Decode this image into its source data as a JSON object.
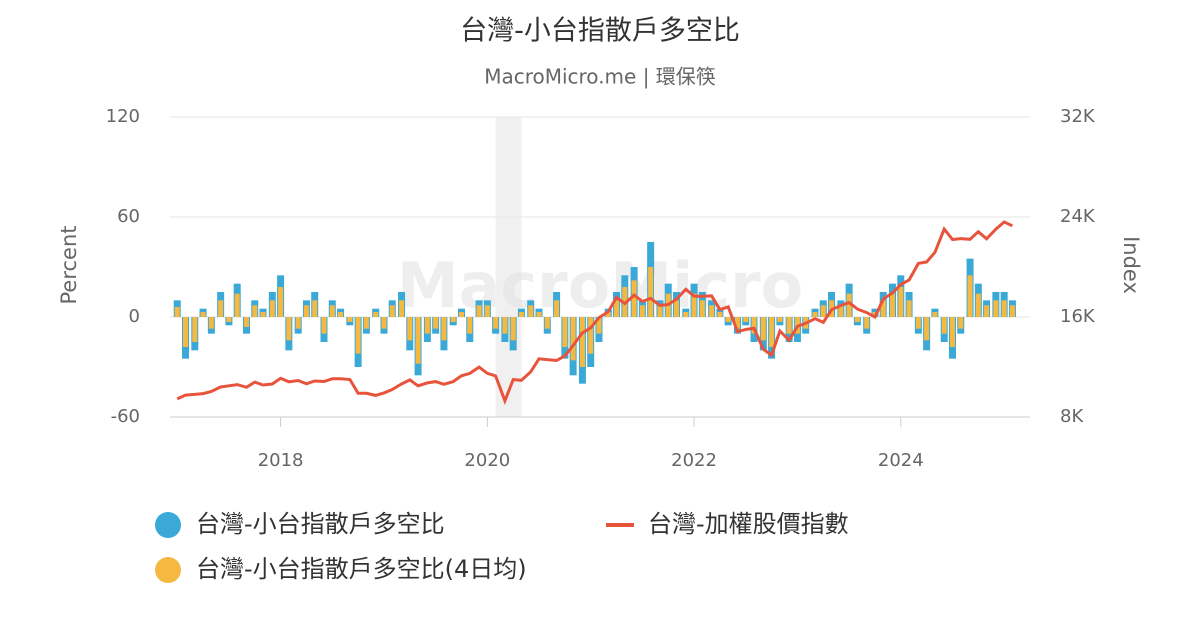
{
  "chart_data": {
    "type": "bar-line",
    "title": "台灣-小台指散戶多空比",
    "subtitle": "MacroMicro.me | 環保筷",
    "watermark": "MacroMicro",
    "y_label": "Percent",
    "y2_label": "Index",
    "x": [
      2017.0,
      2017.08,
      2017.17,
      2017.25,
      2017.33,
      2017.42,
      2017.5,
      2017.58,
      2017.67,
      2017.75,
      2017.83,
      2017.92,
      2018.0,
      2018.08,
      2018.17,
      2018.25,
      2018.33,
      2018.42,
      2018.5,
      2018.58,
      2018.67,
      2018.75,
      2018.83,
      2018.92,
      2019.0,
      2019.08,
      2019.17,
      2019.25,
      2019.33,
      2019.42,
      2019.5,
      2019.58,
      2019.67,
      2019.75,
      2019.83,
      2019.92,
      2020.0,
      2020.08,
      2020.17,
      2020.25,
      2020.33,
      2020.42,
      2020.5,
      2020.58,
      2020.67,
      2020.75,
      2020.83,
      2020.92,
      2021.0,
      2021.08,
      2021.17,
      2021.25,
      2021.33,
      2021.42,
      2021.5,
      2021.58,
      2021.67,
      2021.75,
      2021.83,
      2021.92,
      2022.0,
      2022.08,
      2022.17,
      2022.25,
      2022.33,
      2022.42,
      2022.5,
      2022.58,
      2022.67,
      2022.75,
      2022.83,
      2022.92,
      2023.0,
      2023.08,
      2023.17,
      2023.25,
      2023.33,
      2023.42,
      2023.5,
      2023.58,
      2023.67,
      2023.75,
      2023.83,
      2023.92,
      2024.0,
      2024.08,
      2024.17,
      2024.25,
      2024.33,
      2024.42,
      2024.5,
      2024.58,
      2024.67,
      2024.75,
      2024.83,
      2024.92,
      2025.0,
      2025.08
    ],
    "series": [
      {
        "name": "台灣-小台指散戶多空比",
        "color": "#3aa9d8",
        "marker": "circle",
        "values": [
          10,
          -25,
          -20,
          5,
          -10,
          15,
          -5,
          20,
          -10,
          10,
          5,
          15,
          25,
          -20,
          -10,
          10,
          15,
          -15,
          10,
          5,
          -5,
          -30,
          -10,
          5,
          -10,
          10,
          15,
          -20,
          -35,
          -15,
          -10,
          -20,
          -5,
          5,
          -15,
          10,
          10,
          -10,
          -15,
          -20,
          5,
          10,
          5,
          -10,
          15,
          -25,
          -35,
          -40,
          -30,
          -15,
          5,
          15,
          25,
          30,
          10,
          45,
          10,
          20,
          15,
          5,
          20,
          15,
          10,
          5,
          -5,
          -10,
          -5,
          -15,
          -20,
          -25,
          -5,
          -15,
          -15,
          -10,
          5,
          10,
          15,
          10,
          20,
          -5,
          -10,
          5,
          15,
          20,
          25,
          15,
          -10,
          -20,
          5,
          -15,
          -25,
          -10,
          35,
          20,
          10,
          15,
          15,
          10
        ]
      },
      {
        "name": "台灣-小台指散戶多空比(4日均)",
        "color": "#f5b942",
        "marker": "circle",
        "values": [
          6,
          -18,
          -15,
          3,
          -7,
          10,
          -3,
          14,
          -6,
          7,
          3,
          10,
          18,
          -14,
          -7,
          7,
          10,
          -10,
          7,
          3,
          -3,
          -22,
          -7,
          3,
          -7,
          7,
          10,
          -14,
          -28,
          -10,
          -7,
          -14,
          -3,
          3,
          -10,
          7,
          7,
          -7,
          -10,
          -14,
          3,
          7,
          3,
          -7,
          10,
          -18,
          -26,
          -30,
          -22,
          -10,
          3,
          10,
          18,
          22,
          7,
          30,
          7,
          14,
          10,
          3,
          14,
          10,
          7,
          3,
          -3,
          -7,
          -3,
          -10,
          -14,
          -18,
          -3,
          -10,
          -10,
          -7,
          3,
          7,
          10,
          7,
          14,
          -3,
          -7,
          3,
          10,
          14,
          18,
          10,
          -7,
          -14,
          3,
          -10,
          -18,
          -7,
          25,
          14,
          7,
          10,
          10,
          7
        ]
      },
      {
        "name": "台灣-加權股價指數",
        "color": "#e8533c",
        "marker": "line",
        "axis": "y2",
        "values": [
          9450,
          9750,
          9810,
          9870,
          10040,
          10400,
          10500,
          10590,
          10380,
          10790,
          10560,
          10640,
          11100,
          10820,
          10920,
          10660,
          10880,
          10840,
          11060,
          11060,
          11000,
          9900,
          9900,
          9730,
          9930,
          10200,
          10640,
          10970,
          10500,
          10730,
          10830,
          10620,
          10830,
          11300,
          11490,
          11990,
          11500,
          11290,
          9300,
          10990,
          10940,
          11620,
          12660,
          12590,
          12520,
          12900,
          13720,
          14730,
          15140,
          15950,
          16430,
          17570,
          17070,
          17750,
          17250,
          17490,
          16930,
          16990,
          17430,
          18220,
          17670,
          17650,
          17700,
          16590,
          16810,
          14830,
          15000,
          15100,
          13420,
          12950,
          14880,
          14140,
          15260,
          15500,
          15870,
          15580,
          16580,
          16920,
          17150,
          16630,
          16350,
          16000,
          17430,
          17930,
          18600,
          18960,
          20290,
          20400,
          21170,
          23030,
          22200,
          22270,
          22220,
          22820,
          22260,
          23030,
          23600,
          23300
        ]
      }
    ],
    "bands": [
      [
        2020.08,
        2020.33
      ]
    ],
    "xlim": [
      2016.93,
      2025.25
    ],
    "xticks": [
      2018,
      2020,
      2022,
      2024
    ],
    "ylim": [
      -60,
      120
    ],
    "yticks": [
      -60,
      0,
      60,
      120
    ],
    "y2lim": [
      8000,
      32000
    ],
    "y2ticks": [
      {
        "value": 8000,
        "label": "8K"
      },
      {
        "value": 16000,
        "label": "16K"
      },
      {
        "value": 24000,
        "label": "24K"
      },
      {
        "value": 32000,
        "label": "32K"
      }
    ],
    "grid": true,
    "legend": "bottom"
  }
}
